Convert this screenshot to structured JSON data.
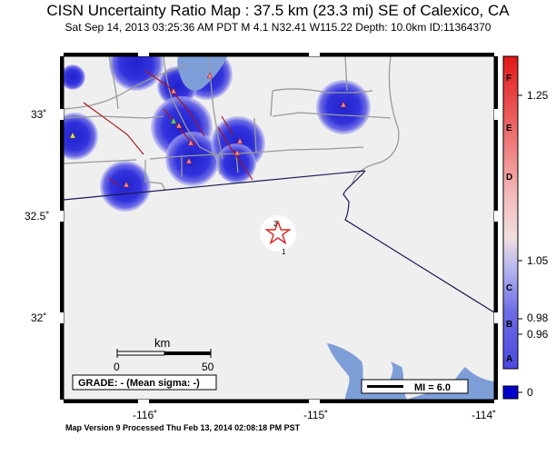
{
  "header": {
    "title": "CISN Uncertainty Ratio Map : 37.5 km (23.3 mi) SE of Calexico, CA",
    "subtitle": "Sat Sep 14, 2013 03:25:36 AM PDT   M 4.1   N32.41 W115.22   Depth: 10.0km   ID:11364370"
  },
  "map": {
    "lat_labels": [
      "33˚",
      "32.5˚",
      "32˚"
    ],
    "lon_labels": [
      "-116˚",
      "-115˚",
      "-114˚"
    ],
    "scalebar": {
      "unit": "km",
      "start": "0",
      "end": "50"
    },
    "grade_text": "GRADE: - (Mean sigma: -)",
    "mi_legend": "MI = 6.0",
    "station_labels": [
      "2",
      "1"
    ],
    "colors": {
      "uncertainty": "#2b2bd6",
      "water": "#7e9ed8",
      "land": "#efefef",
      "border": "#1a1a55",
      "faults": "#aa1111"
    }
  },
  "colorbar": {
    "letters": [
      "F",
      "E",
      "D",
      "C",
      "B",
      "A"
    ],
    "values": [
      "1.25",
      "1.05",
      "0.98",
      "0.96",
      "0"
    ]
  },
  "footer": {
    "text": "Map Version 9 Processed Thu Feb 13, 2014 02:08:18 PM PST"
  }
}
